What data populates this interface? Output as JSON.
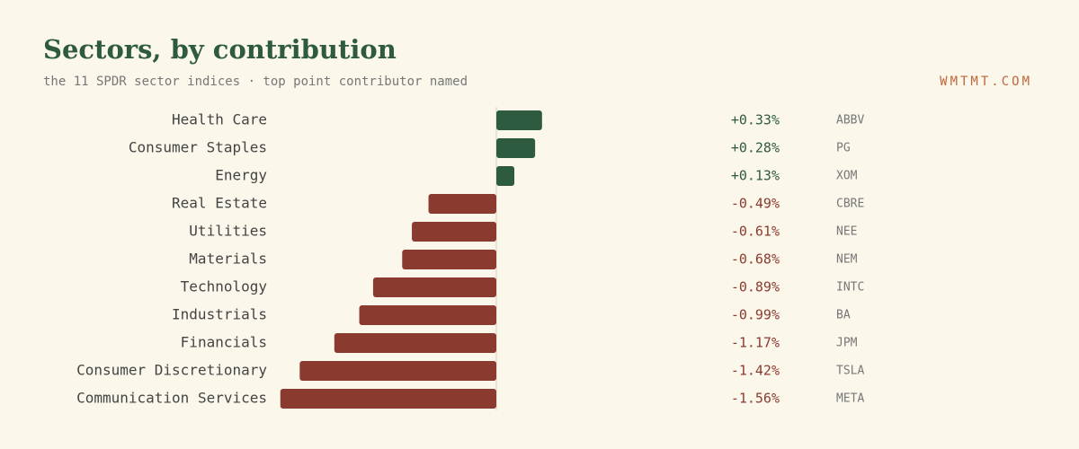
{
  "chart_data": {
    "type": "bar",
    "orientation": "horizontal",
    "title": "Sectors, by contribution",
    "subtitle": "the 11 SPDR sector indices · top point contributor named",
    "source": "WMTMT.COM",
    "categories": [
      "Health Care",
      "Consumer Staples",
      "Energy",
      "Real Estate",
      "Utilities",
      "Materials",
      "Technology",
      "Industrials",
      "Financials",
      "Consumer Discretionary",
      "Communication Services"
    ],
    "values": [
      0.33,
      0.28,
      0.13,
      -0.49,
      -0.61,
      -0.68,
      -0.89,
      -0.99,
      -1.17,
      -1.42,
      -1.56
    ],
    "value_labels": [
      "+0.33%",
      "+0.28%",
      "+0.13%",
      "-0.49%",
      "-0.61%",
      "-0.68%",
      "-0.89%",
      "-0.99%",
      "-1.17%",
      "-1.42%",
      "-1.56%"
    ],
    "contributors": [
      "ABBV",
      "PG",
      "XOM",
      "CBRE",
      "NEE",
      "NEM",
      "INTC",
      "BA",
      "JPM",
      "TSLA",
      "META"
    ],
    "positive_color": "#2e5b3f",
    "negative_color": "#8b3a2f"
  }
}
